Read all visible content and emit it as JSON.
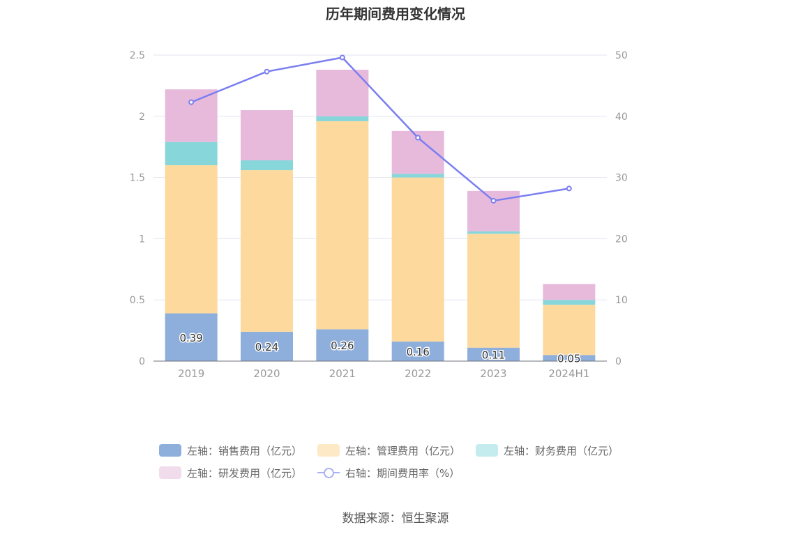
{
  "title": "历年期间费用变化情况",
  "source": "数据来源：恒生聚源",
  "colors": {
    "sales": "#8eaedb",
    "admin": "#fdd99d",
    "finance": "#87d6d9",
    "rd": "#e7badc",
    "rate": "#7b7ef0",
    "grid": "#e2e5ef",
    "axis_text": "#999999"
  },
  "legend": [
    {
      "key": "sales",
      "label": "左轴：销售费用（亿元）",
      "color": "#8eaedb"
    },
    {
      "key": "admin",
      "label": "左轴：管理费用（亿元）",
      "color": "#fee9c6"
    },
    {
      "key": "finance",
      "label": "左轴：财务费用（亿元）",
      "color": "#c4ecee"
    },
    {
      "key": "rd",
      "label": "左轴：研发费用（亿元）",
      "color": "#f1dcec"
    },
    {
      "key": "rate",
      "label": "右轴：期间费用率（%）",
      "color": "#aab0f4"
    }
  ],
  "chart_data": {
    "type": "bar",
    "stacked": true,
    "title": "历年期间费用变化情况",
    "categories": [
      "2019",
      "2020",
      "2021",
      "2022",
      "2023",
      "2024H1"
    ],
    "series": [
      {
        "name": "左轴：销售费用（亿元）",
        "key": "sales",
        "axis": "left",
        "values": [
          0.39,
          0.24,
          0.26,
          0.16,
          0.11,
          0.05
        ],
        "labels": [
          "0.39",
          "0.24",
          "0.26",
          "0.16",
          "0.11",
          "0.05"
        ]
      },
      {
        "name": "左轴：管理费用（亿元）",
        "key": "admin",
        "axis": "left",
        "values": [
          1.21,
          1.32,
          1.7,
          1.34,
          0.93,
          0.41
        ]
      },
      {
        "name": "左轴：财务费用（亿元）",
        "key": "finance",
        "axis": "left",
        "values": [
          0.19,
          0.08,
          0.04,
          0.03,
          0.02,
          0.04
        ]
      },
      {
        "name": "左轴：研发费用（亿元）",
        "key": "rd",
        "axis": "left",
        "values": [
          0.43,
          0.41,
          0.38,
          0.35,
          0.33,
          0.13
        ]
      },
      {
        "name": "右轴：期间费用率（%）",
        "key": "rate",
        "axis": "right",
        "type": "line",
        "values": [
          42.3,
          47.3,
          49.6,
          36.5,
          26.2,
          28.2
        ]
      }
    ],
    "y_left": {
      "min": 0,
      "max": 2.5,
      "ticks": [
        "0",
        "0.5",
        "1",
        "1.5",
        "2",
        "2.5"
      ]
    },
    "y_right": {
      "min": 0,
      "max": 50,
      "ticks": [
        "0",
        "10",
        "20",
        "30",
        "40",
        "50"
      ]
    },
    "grid": true,
    "legend_position": "bottom"
  }
}
